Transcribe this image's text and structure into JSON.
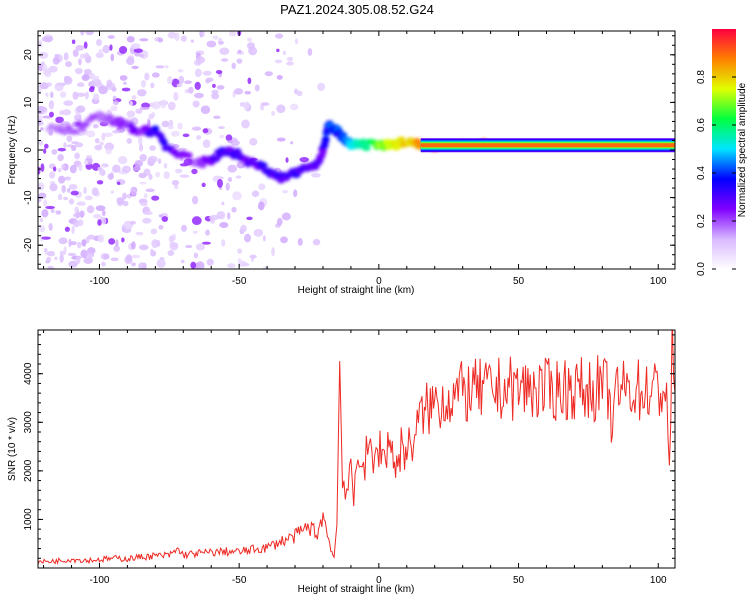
{
  "title": "PAZ1.2024.305.08.52.G24",
  "colors": {
    "snr_line": "#ee2a24",
    "spectrogram_ridge": "#6a00ff",
    "speckle": "#c9a8f5",
    "axis": "#000000"
  },
  "chart_data": [
    {
      "type": "heatmap",
      "xlabel": "Height of straight line (km)",
      "ylabel": "Frequency (Hz)",
      "xlim": [
        -122,
        106
      ],
      "ylim": [
        -25,
        25
      ],
      "xticks": [
        -100,
        -50,
        0,
        50,
        100
      ],
      "yticks": [
        -20,
        -10,
        0,
        10,
        20
      ],
      "colorbar": {
        "label": "Normalized spectral amplitude",
        "range": [
          0,
          1
        ],
        "ticks": [
          "0.0",
          "0.2",
          "0.4",
          "0.6",
          "0.8"
        ],
        "colormap": "rainbow",
        "stops": [
          "#ffffff",
          "#d8b8ff",
          "#8000ff",
          "#0000ff",
          "#00e5ff",
          "#00ff40",
          "#e0ff00",
          "#ff8000",
          "#ff0040"
        ]
      },
      "ridge": {
        "x": [
          -118,
          -110,
          -100,
          -95,
          -90,
          -85,
          -80,
          -75,
          -70,
          -65,
          -60,
          -55,
          -50,
          -45,
          -40,
          -35,
          -30,
          -25,
          -22,
          -20,
          -18,
          -15,
          -12,
          -10,
          -5,
          0,
          5,
          10,
          15,
          20,
          40,
          60,
          80,
          100,
          106
        ],
        "y": [
          5,
          4,
          7,
          6,
          5,
          4,
          4,
          0,
          -1,
          -3,
          -2,
          0,
          -1,
          -3,
          -4,
          -6,
          -5,
          -3,
          -3,
          0,
          5,
          4,
          2,
          1,
          1,
          1,
          1,
          2,
          1,
          1,
          1,
          1,
          1,
          1,
          1
        ],
        "amplitude": [
          0.15,
          0.2,
          0.2,
          0.2,
          0.22,
          0.25,
          0.35,
          0.3,
          0.25,
          0.2,
          0.28,
          0.3,
          0.3,
          0.3,
          0.3,
          0.3,
          0.3,
          0.3,
          0.3,
          0.3,
          0.4,
          0.4,
          0.4,
          0.5,
          0.55,
          0.7,
          0.75,
          0.8,
          0.85,
          0.9,
          0.9,
          0.9,
          0.9,
          0.9,
          0.9
        ]
      }
    },
    {
      "type": "line",
      "xlabel": "Height of straight line (km)",
      "ylabel": "SNR (10 * v/v)",
      "xlim": [
        -122,
        106
      ],
      "ylim": [
        0,
        4900
      ],
      "xticks": [
        -100,
        -50,
        0,
        50,
        100
      ],
      "yticks": [
        1000,
        2000,
        3000,
        4000
      ],
      "series": [
        {
          "x": [
            -122,
            -115,
            -110,
            -105,
            -100,
            -95,
            -90,
            -85,
            -80,
            -75,
            -72,
            -70,
            -65,
            -60,
            -55,
            -50,
            -45,
            -40,
            -35,
            -30,
            -28,
            -25,
            -22,
            -20,
            -18,
            -16,
            -15,
            -14,
            -13,
            -12,
            -11,
            -10,
            -9,
            -8,
            -7,
            -6,
            -5,
            -4,
            -3,
            -2,
            -1,
            0,
            2,
            4,
            6,
            8,
            10,
            12,
            15,
            18,
            20,
            22,
            25,
            28,
            30,
            35,
            40,
            45,
            50,
            55,
            60,
            65,
            70,
            75,
            80,
            82,
            84,
            85,
            88,
            90,
            95,
            100,
            103,
            104,
            105,
            106
          ],
          "y": [
            120,
            150,
            180,
            160,
            170,
            200,
            190,
            230,
            250,
            260,
            380,
            270,
            300,
            320,
            340,
            330,
            380,
            420,
            550,
            650,
            750,
            850,
            700,
            1100,
            600,
            200,
            900,
            4300,
            2000,
            1500,
            1700,
            1900,
            1400,
            2000,
            2300,
            2500,
            2000,
            2600,
            2300,
            2000,
            2400,
            2500,
            2300,
            2700,
            2000,
            2500,
            2400,
            2600,
            3100,
            3300,
            3400,
            3450,
            3500,
            3600,
            3600,
            3650,
            3650,
            3700,
            3700,
            3700,
            3650,
            3700,
            3700,
            3650,
            3750,
            3600,
            2800,
            3700,
            3650,
            3700,
            3650,
            3650,
            3700,
            1800,
            4800,
            3600
          ]
        }
      ]
    }
  ]
}
